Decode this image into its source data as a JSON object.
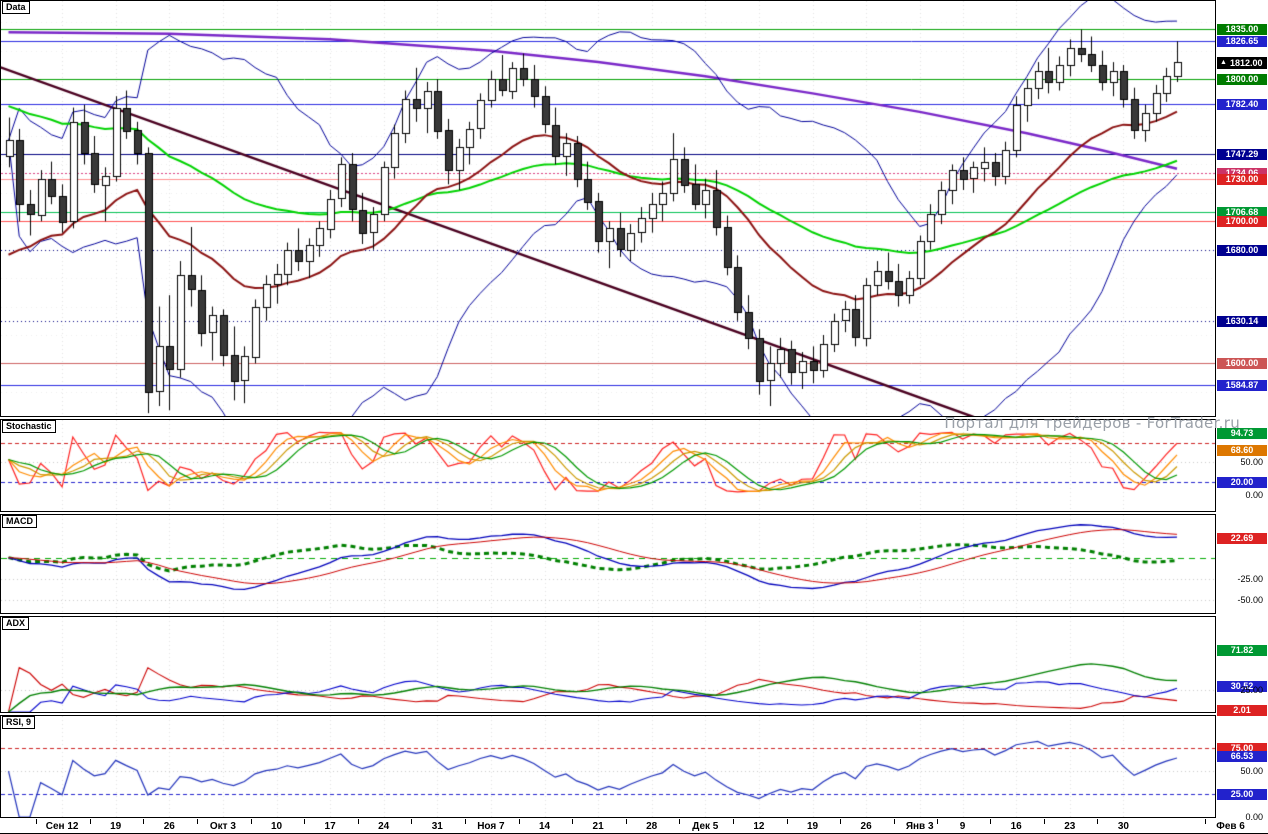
{
  "watermark": "Портал для трейдеров - ForTrader.ru",
  "grid": {
    "v_color": "#e2e2e2",
    "h_color": "#ededed"
  },
  "chart_data": {
    "type": "candlestick",
    "time_labels": [
      {
        "text": "Сен 12",
        "i": 5
      },
      {
        "text": "19",
        "i": 10
      },
      {
        "text": "26",
        "i": 15
      },
      {
        "text": "Окт 3",
        "i": 20
      },
      {
        "text": "10",
        "i": 25
      },
      {
        "text": "17",
        "i": 30
      },
      {
        "text": "24",
        "i": 35
      },
      {
        "text": "31",
        "i": 40
      },
      {
        "text": "Ноя 7",
        "i": 45
      },
      {
        "text": "14",
        "i": 50
      },
      {
        "text": "21",
        "i": 55
      },
      {
        "text": "28",
        "i": 60
      },
      {
        "text": "Дек 5",
        "i": 65
      },
      {
        "text": "12",
        "i": 70
      },
      {
        "text": "19",
        "i": 75
      },
      {
        "text": "26",
        "i": 80
      },
      {
        "text": "Янв 3",
        "i": 85
      },
      {
        "text": "9",
        "i": 89
      },
      {
        "text": "16",
        "i": 94
      },
      {
        "text": "23",
        "i": 99
      },
      {
        "text": "30",
        "i": 104
      },
      {
        "text": "Фев 6",
        "i": 114
      }
    ],
    "main": {
      "label": "Data",
      "ylim": [
        1563,
        1855
      ],
      "candle_colors": {
        "up": "#ffffff",
        "down": "#383838",
        "border": "#000000"
      },
      "axis_labels": [
        {
          "text": "1835.00",
          "value": 1835,
          "bg": "#007c00"
        },
        {
          "text": "1826.65",
          "value": 1826.65,
          "bg": "#2222cc"
        },
        {
          "text": "1812.00",
          "value": 1812,
          "bg": "#000000",
          "current": true,
          "arrow": "▲"
        },
        {
          "text": "1800.00",
          "value": 1800,
          "bg": "#007c00"
        },
        {
          "text": "1782.40",
          "value": 1782.4,
          "bg": "#2222cc"
        },
        {
          "text": "1747.29",
          "value": 1747.29,
          "bg": "#000090"
        },
        {
          "text": "1734.06",
          "value": 1734.06,
          "bg": "#cc3366"
        },
        {
          "text": "1730.00",
          "value": 1730,
          "bg": "#dd2222"
        },
        {
          "text": "1706.68",
          "value": 1706.68,
          "bg": "#009933"
        },
        {
          "text": "1700.00",
          "value": 1700,
          "bg": "#dd2222"
        },
        {
          "text": "1680.00",
          "value": 1680,
          "bg": "#000090"
        },
        {
          "text": "1630.14",
          "value": 1630.14,
          "bg": "#000090"
        },
        {
          "text": "1600.00",
          "value": 1600,
          "bg": "#cc5555"
        },
        {
          "text": "1584.87",
          "value": 1584.87,
          "bg": "#2222cc"
        }
      ],
      "levels": [
        {
          "v": 1835,
          "color": "#00a000"
        },
        {
          "v": 1826.65,
          "color": "#2a2ae0"
        },
        {
          "v": 1800,
          "color": "#00a000"
        },
        {
          "v": 1782.4,
          "color": "#2a2ae0"
        },
        {
          "v": 1747.29,
          "color": "#000080"
        },
        {
          "v": 1734.06,
          "color": "#d84080",
          "dash": [
            2,
            2
          ]
        },
        {
          "v": 1730,
          "color": "#ff9090"
        },
        {
          "v": 1706.68,
          "color": "#00c050"
        },
        {
          "v": 1700,
          "color": "#ff5050"
        },
        {
          "v": 1680,
          "color": "#000080",
          "dash": [
            1,
            3
          ]
        },
        {
          "v": 1630.14,
          "color": "#000080",
          "dash": [
            1,
            3
          ]
        },
        {
          "v": 1600,
          "color": "#cc6060"
        },
        {
          "v": 1584.87,
          "color": "#2a2ae0"
        }
      ],
      "overlays": {
        "bollinger": {
          "period": 20,
          "mult": 2,
          "color": "#000099"
        },
        "ma_fast": {
          "period": 20,
          "seed": 1668,
          "color": "#8b1212",
          "width": 2
        },
        "ma_slow": {
          "period": 50,
          "seed": 1782,
          "color": "#00d200",
          "width": 2
        },
        "ma_long": {
          "color": "#7a28c8",
          "width": 2.5,
          "points": [
            [
              0,
              1833
            ],
            [
              15,
              1832
            ],
            [
              30,
              1828
            ],
            [
              45,
              1820
            ],
            [
              55,
              1812
            ],
            [
              65,
              1802
            ],
            [
              75,
              1790
            ],
            [
              85,
              1777
            ],
            [
              95,
              1762
            ],
            [
              102,
              1750
            ],
            [
              109,
              1737
            ]
          ]
        },
        "trendline": {
          "color": "#4a0020",
          "width": 2.5,
          "from": [
            -1,
            1809
          ],
          "to": [
            92,
            1557
          ]
        }
      },
      "ohlc": [
        [
          1746,
          1773,
          1738,
          1757
        ],
        [
          1757,
          1765,
          1700,
          1712
        ],
        [
          1712,
          1722,
          1690,
          1705
        ],
        [
          1705,
          1736,
          1700,
          1730
        ],
        [
          1730,
          1742,
          1712,
          1718
        ],
        [
          1718,
          1726,
          1692,
          1700
        ],
        [
          1700,
          1780,
          1695,
          1770
        ],
        [
          1770,
          1782,
          1740,
          1748
        ],
        [
          1748,
          1760,
          1720,
          1726
        ],
        [
          1726,
          1738,
          1700,
          1732
        ],
        [
          1732,
          1788,
          1728,
          1780
        ],
        [
          1780,
          1792,
          1758,
          1764
        ],
        [
          1764,
          1770,
          1740,
          1748
        ],
        [
          1748,
          1752,
          1565,
          1580
        ],
        [
          1580,
          1640,
          1570,
          1612
        ],
        [
          1612,
          1648,
          1567,
          1596
        ],
        [
          1596,
          1672,
          1590,
          1662
        ],
        [
          1662,
          1696,
          1640,
          1652
        ],
        [
          1652,
          1662,
          1612,
          1622
        ],
        [
          1622,
          1640,
          1602,
          1634
        ],
        [
          1634,
          1638,
          1598,
          1606
        ],
        [
          1606,
          1626,
          1574,
          1588
        ],
        [
          1588,
          1612,
          1572,
          1605
        ],
        [
          1605,
          1645,
          1600,
          1640
        ],
        [
          1640,
          1662,
          1630,
          1656
        ],
        [
          1656,
          1670,
          1642,
          1663
        ],
        [
          1663,
          1685,
          1655,
          1680
        ],
        [
          1680,
          1695,
          1665,
          1672
        ],
        [
          1672,
          1688,
          1660,
          1683
        ],
        [
          1683,
          1700,
          1675,
          1695
        ],
        [
          1695,
          1722,
          1688,
          1716
        ],
        [
          1716,
          1745,
          1710,
          1740
        ],
        [
          1740,
          1748,
          1700,
          1708
        ],
        [
          1708,
          1720,
          1684,
          1692
        ],
        [
          1692,
          1710,
          1680,
          1705
        ],
        [
          1705,
          1742,
          1700,
          1738
        ],
        [
          1738,
          1768,
          1730,
          1762
        ],
        [
          1762,
          1792,
          1755,
          1786
        ],
        [
          1786,
          1808,
          1770,
          1780
        ],
        [
          1780,
          1798,
          1762,
          1792
        ],
        [
          1792,
          1800,
          1758,
          1764
        ],
        [
          1764,
          1772,
          1726,
          1736
        ],
        [
          1736,
          1758,
          1722,
          1752
        ],
        [
          1752,
          1770,
          1740,
          1765
        ],
        [
          1765,
          1790,
          1758,
          1785
        ],
        [
          1785,
          1806,
          1780,
          1800
        ],
        [
          1800,
          1817,
          1788,
          1792
        ],
        [
          1792,
          1812,
          1786,
          1808
        ],
        [
          1808,
          1818,
          1795,
          1800
        ],
        [
          1800,
          1810,
          1780,
          1788
        ],
        [
          1788,
          1795,
          1762,
          1768
        ],
        [
          1768,
          1780,
          1740,
          1746
        ],
        [
          1746,
          1762,
          1732,
          1755
        ],
        [
          1755,
          1760,
          1724,
          1730
        ],
        [
          1730,
          1742,
          1708,
          1714
        ],
        [
          1714,
          1720,
          1678,
          1686
        ],
        [
          1686,
          1700,
          1667,
          1695
        ],
        [
          1695,
          1706,
          1675,
          1680
        ],
        [
          1680,
          1698,
          1672,
          1692
        ],
        [
          1692,
          1710,
          1685,
          1702
        ],
        [
          1702,
          1720,
          1692,
          1712
        ],
        [
          1712,
          1728,
          1700,
          1720
        ],
        [
          1720,
          1762,
          1714,
          1744
        ],
        [
          1744,
          1752,
          1720,
          1726
        ],
        [
          1726,
          1740,
          1708,
          1712
        ],
        [
          1712,
          1730,
          1702,
          1722
        ],
        [
          1722,
          1736,
          1690,
          1696
        ],
        [
          1696,
          1704,
          1662,
          1668
        ],
        [
          1668,
          1676,
          1630,
          1636
        ],
        [
          1636,
          1648,
          1610,
          1618
        ],
        [
          1618,
          1624,
          1578,
          1588
        ],
        [
          1588,
          1612,
          1570,
          1600
        ],
        [
          1600,
          1618,
          1590,
          1610
        ],
        [
          1610,
          1616,
          1585,
          1594
        ],
        [
          1594,
          1608,
          1582,
          1602
        ],
        [
          1602,
          1612,
          1586,
          1596
        ],
        [
          1596,
          1620,
          1590,
          1614
        ],
        [
          1614,
          1635,
          1608,
          1630
        ],
        [
          1630,
          1644,
          1622,
          1638
        ],
        [
          1638,
          1648,
          1612,
          1618
        ],
        [
          1618,
          1660,
          1612,
          1655
        ],
        [
          1655,
          1672,
          1648,
          1665
        ],
        [
          1665,
          1678,
          1652,
          1658
        ],
        [
          1658,
          1670,
          1640,
          1648
        ],
        [
          1648,
          1665,
          1642,
          1660
        ],
        [
          1660,
          1690,
          1655,
          1686
        ],
        [
          1686,
          1712,
          1680,
          1705
        ],
        [
          1705,
          1728,
          1698,
          1722
        ],
        [
          1722,
          1740,
          1712,
          1736
        ],
        [
          1736,
          1745,
          1722,
          1730
        ],
        [
          1730,
          1742,
          1720,
          1738
        ],
        [
          1738,
          1752,
          1728,
          1742
        ],
        [
          1742,
          1748,
          1725,
          1732
        ],
        [
          1732,
          1756,
          1726,
          1750
        ],
        [
          1750,
          1788,
          1745,
          1782
        ],
        [
          1782,
          1800,
          1770,
          1794
        ],
        [
          1794,
          1812,
          1786,
          1806
        ],
        [
          1806,
          1822,
          1790,
          1798
        ],
        [
          1798,
          1816,
          1792,
          1810
        ],
        [
          1810,
          1828,
          1802,
          1822
        ],
        [
          1822,
          1835,
          1812,
          1818
        ],
        [
          1818,
          1830,
          1805,
          1810
        ],
        [
          1810,
          1820,
          1792,
          1798
        ],
        [
          1798,
          1812,
          1788,
          1806
        ],
        [
          1806,
          1810,
          1780,
          1786
        ],
        [
          1786,
          1794,
          1758,
          1764
        ],
        [
          1764,
          1782,
          1756,
          1776
        ],
        [
          1776,
          1796,
          1770,
          1790
        ],
        [
          1790,
          1808,
          1784,
          1802
        ],
        [
          1802,
          1826.65,
          1798,
          1812
        ]
      ]
    },
    "stochastic": {
      "label": "Stochastic",
      "ylim": [
        -25,
        115
      ],
      "k_period": 8,
      "smoothing": [
        3,
        3,
        3
      ],
      "colors": [
        "#ff2020",
        "#ff8c00",
        "#cc9900",
        "#009900"
      ],
      "levels": [
        {
          "v": 80,
          "color": "#cc2020",
          "dash": [
            4,
            3
          ]
        },
        {
          "v": 50,
          "color": "#c8c8c8",
          "dash": [
            1,
            3
          ]
        },
        {
          "v": 20,
          "color": "#2020cc",
          "dash": [
            4,
            3
          ]
        }
      ],
      "axis_labels": [
        {
          "text": "94.73",
          "value": 94.73,
          "bg": "#009933"
        },
        {
          "text": "68.60",
          "value": 68.6,
          "bg": "#dd7700"
        },
        {
          "text": "50.00",
          "value": 50
        },
        {
          "text": "20.00",
          "value": 20,
          "bg": "#2222cc"
        },
        {
          "text": "0.00",
          "value": 0
        }
      ]
    },
    "macd": {
      "label": "MACD",
      "ylim": [
        -65,
        50
      ],
      "fast": 12,
      "slow": 26,
      "signal": 9,
      "colors": {
        "macd": "#0000bb",
        "signal": "#cc0000",
        "hist": "#008000"
      },
      "levels": [
        {
          "v": 0,
          "color": "#00aa00",
          "dash": [
            6,
            5
          ]
        },
        {
          "v": -25,
          "color": "#c8c8c8",
          "dash": [
            1,
            3
          ]
        },
        {
          "v": -50,
          "color": "#c8c8c8",
          "dash": [
            1,
            3
          ]
        }
      ],
      "axis_labels": [
        {
          "text": "22.69",
          "value": 22.69,
          "bg": "#dd2222"
        },
        {
          "text": "-25.00",
          "value": -25
        },
        {
          "text": "-50.00",
          "value": -50
        }
      ]
    },
    "adx": {
      "label": "ADX",
      "ylim": [
        0,
        110
      ],
      "period": 10,
      "colors": {
        "adx": "#008000",
        "plus_di": "#0000cc",
        "minus_di": "#cc0000"
      },
      "levels": [
        {
          "v": 25,
          "color": "#c8c8c8",
          "dash": [
            1,
            3
          ]
        }
      ],
      "axis_labels": [
        {
          "text": "71.82",
          "value": 71.82,
          "bg": "#009933"
        },
        {
          "text": "30.52",
          "value": 30.52,
          "bg": "#2222cc"
        },
        {
          "text": "25.00",
          "value": 25
        },
        {
          "text": "2.01",
          "value": 2.01,
          "bg": "#dd2222"
        }
      ]
    },
    "rsi": {
      "label": "RSI, 9",
      "ylim": [
        0,
        110
      ],
      "period": 9,
      "color": "#2233bb",
      "levels": [
        {
          "v": 75,
          "color": "#cc2020",
          "dash": [
            4,
            3
          ]
        },
        {
          "v": 50,
          "color": "#c8c8c8",
          "dash": [
            1,
            3
          ]
        },
        {
          "v": 25,
          "color": "#2020cc",
          "dash": [
            4,
            3
          ]
        }
      ],
      "axis_labels": [
        {
          "text": "75.00",
          "value": 75,
          "bg": "#dd2222"
        },
        {
          "text": "66.53",
          "value": 66.53,
          "bg": "#2222cc"
        },
        {
          "text": "50.00",
          "value": 50
        },
        {
          "text": "25.00",
          "value": 25,
          "bg": "#2222cc"
        },
        {
          "text": "0.00",
          "value": 0
        }
      ]
    }
  }
}
